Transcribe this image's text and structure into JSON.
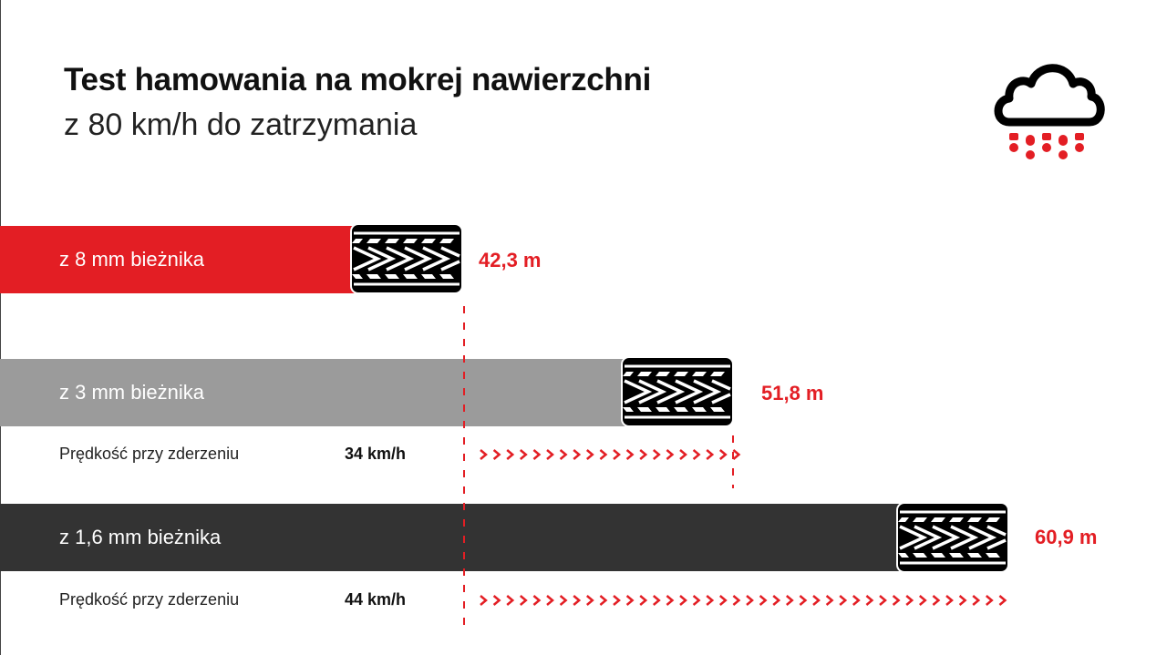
{
  "title": "Test hamowania na mokrej nawierzchni",
  "subtitle": "z 80 km/h do zatrzymania",
  "icons": {
    "weather": "rain-cloud-icon",
    "tire": "tire-tread-icon",
    "arrows": "chevron-right-icon"
  },
  "colors": {
    "accent": "#e31e24",
    "bar_8mm": "#e31e24",
    "bar_3mm": "#9b9b9b",
    "bar_1_6mm": "#333333",
    "text": "#111111"
  },
  "chart_data": {
    "type": "bar",
    "orientation": "horizontal",
    "categories": [
      "z 8 mm bieżnika",
      "z 3 mm bieżnika",
      "z 1,6 mm bieżnika"
    ],
    "values": [
      42.3,
      51.8,
      60.9
    ],
    "value_labels": [
      "42,3 m",
      "51,8 m",
      "60,9 m"
    ],
    "unit": "m",
    "impact_speed": {
      "label": "Prędkość przy zderzeniu",
      "values": [
        null,
        34,
        44
      ],
      "value_labels": [
        "",
        "34 km/h",
        "44 km/h"
      ],
      "unit": "km/h"
    }
  }
}
